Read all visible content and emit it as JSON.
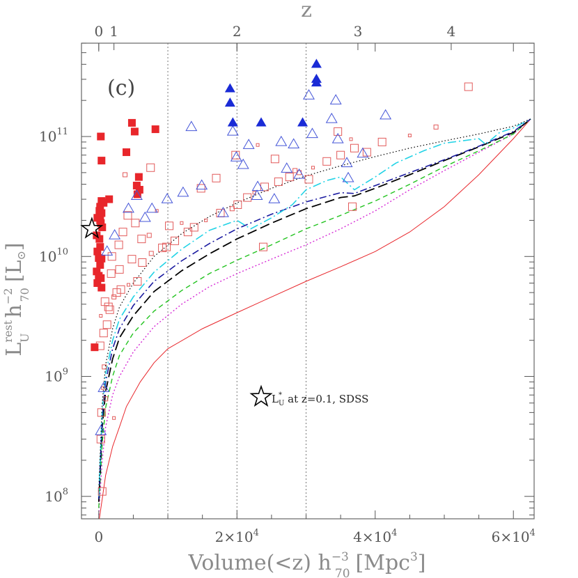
{
  "chart_data": {
    "type": "scatter",
    "panel_label": "(c)",
    "xlabel": "Volume(<z) h",
    "xlabel_sub": "70",
    "xlabel_sup": "−3",
    "xlabel_unit": "[Mpc",
    "xlabel_unit_sup": "3",
    "xlabel_close": "]",
    "ylabel_main": "L",
    "ylabel_sup": "rest",
    "ylabel_sub": "U",
    "ylabel_h": "h",
    "ylabel_h_sup": "−2",
    "ylabel_h_sub": "70",
    "ylabel_unit": "[L",
    "ylabel_unit_sym": "⊙",
    "ylabel_close": "]",
    "top_axis_label": "z",
    "top_ticks": [
      {
        "label": "0",
        "volume": 0
      },
      {
        "label": "1",
        "volume": 2200
      },
      {
        "label": "2",
        "volume": 20000
      },
      {
        "label": "3",
        "volume": 37500
      },
      {
        "label": "4",
        "volume": 51000
      }
    ],
    "x_ticks": [
      {
        "value": 0,
        "label": "0"
      },
      {
        "value": 20000,
        "label": "2×10",
        "sup": "4"
      },
      {
        "value": 40000,
        "label": "4×10",
        "sup": "4"
      },
      {
        "value": 60000,
        "label": "6×10",
        "sup": "4"
      }
    ],
    "y_ticks": [
      {
        "value": 100000000,
        "label": "10",
        "sup": "8"
      },
      {
        "value": 1000000000,
        "label": "10",
        "sup": "9"
      },
      {
        "value": 10000000000,
        "label": "10",
        "sup": "10"
      },
      {
        "value": 100000000000,
        "label": "10",
        "sup": "11"
      }
    ],
    "xlim": [
      -2500,
      63000
    ],
    "ylim": [
      65000000,
      600000000000
    ],
    "y_scale": "log",
    "dotted_verticals": [
      10000,
      20000,
      30000
    ],
    "legend": {
      "symbol": "star",
      "text_main": "L",
      "text_sup": "*",
      "text_sub": "U",
      "text_rest": " at z=0.1, SDSS"
    },
    "reference_star": {
      "x": -1000,
      "y": 17000000000
    },
    "colors": {
      "red": "#e8262b",
      "red_open": "#e25a5a",
      "blue": "#1a2bd6",
      "blue_open": "#4455d8",
      "cyan": "#22d3e6",
      "green": "#22c31f",
      "magenta": "#d62ad6",
      "black": "#000000",
      "navy": "#1a1aa0"
    },
    "series": [
      {
        "style": "red-solid",
        "points": [
          [
            0,
            60000000
          ],
          [
            1000,
            150000000
          ],
          [
            2000,
            260000000
          ],
          [
            3000,
            380000000
          ],
          [
            4000,
            560000000
          ],
          [
            6000,
            900000000
          ],
          [
            8000,
            1300000000
          ],
          [
            10000,
            1700000000
          ],
          [
            15000,
            2500000000
          ],
          [
            20000,
            3400000000
          ],
          [
            25000,
            4600000000
          ],
          [
            30000,
            6200000000
          ],
          [
            35000,
            8200000000
          ],
          [
            40000,
            11000000000
          ],
          [
            45000,
            16000000000
          ],
          [
            50000,
            26000000000
          ],
          [
            55000,
            48000000000
          ],
          [
            60000,
            96000000000
          ],
          [
            62500,
            140000000000
          ]
        ]
      },
      {
        "style": "magenta-dotted",
        "points": [
          [
            0,
            70000000
          ],
          [
            500,
            200000000
          ],
          [
            1000,
            380000000
          ],
          [
            2000,
            700000000
          ],
          [
            3000,
            1000000000
          ],
          [
            5000,
            1600000000
          ],
          [
            8000,
            2600000000
          ],
          [
            12000,
            4000000000
          ],
          [
            16000,
            5600000000
          ],
          [
            20000,
            7200000000
          ],
          [
            25000,
            9500000000
          ],
          [
            30000,
            12500000000
          ],
          [
            35000,
            17000000000
          ],
          [
            40000,
            24000000000
          ],
          [
            45000,
            36000000000
          ],
          [
            50000,
            52000000000
          ],
          [
            55000,
            74000000000
          ],
          [
            60000,
            105000000000
          ],
          [
            62500,
            140000000000
          ]
        ]
      },
      {
        "style": "green-dashed",
        "points": [
          [
            0,
            80000000
          ],
          [
            500,
            280000000
          ],
          [
            1000,
            550000000
          ],
          [
            2000,
            1000000000
          ],
          [
            3000,
            1500000000
          ],
          [
            5000,
            2300000000
          ],
          [
            8000,
            3500000000
          ],
          [
            12000,
            5200000000
          ],
          [
            16000,
            7200000000
          ],
          [
            20000,
            9300000000
          ],
          [
            25000,
            12500000000
          ],
          [
            30000,
            17000000000
          ],
          [
            35000,
            22000000000
          ],
          [
            40000,
            29000000000
          ],
          [
            45000,
            40000000000
          ],
          [
            50000,
            56000000000
          ],
          [
            55000,
            76000000000
          ],
          [
            60000,
            105000000000
          ],
          [
            62500,
            140000000000
          ]
        ]
      },
      {
        "style": "black-longdash",
        "points": [
          [
            0,
            90000000
          ],
          [
            500,
            380000000
          ],
          [
            1000,
            750000000
          ],
          [
            2000,
            1400000000
          ],
          [
            3000,
            2100000000
          ],
          [
            5000,
            3200000000
          ],
          [
            8000,
            5100000000
          ],
          [
            12000,
            7600000000
          ],
          [
            16000,
            10500000000
          ],
          [
            20000,
            14000000000
          ],
          [
            25000,
            19000000000
          ],
          [
            30000,
            25000000000
          ],
          [
            35000,
            31000000000
          ],
          [
            37000,
            32000000000
          ],
          [
            40000,
            37000000000
          ],
          [
            45000,
            48000000000
          ],
          [
            50000,
            63000000000
          ],
          [
            55000,
            82000000000
          ],
          [
            60000,
            108000000000
          ],
          [
            62500,
            140000000000
          ]
        ]
      },
      {
        "style": "navy-dashdot",
        "points": [
          [
            0,
            95000000
          ],
          [
            500,
            450000000
          ],
          [
            1000,
            900000000
          ],
          [
            2000,
            1700000000
          ],
          [
            3000,
            2500000000
          ],
          [
            5000,
            3900000000
          ],
          [
            8000,
            6200000000
          ],
          [
            12000,
            9200000000
          ],
          [
            16000,
            12800000000
          ],
          [
            20000,
            17000000000
          ],
          [
            25000,
            22500000000
          ],
          [
            30000,
            28500000000
          ],
          [
            35000,
            34000000000
          ],
          [
            37000,
            33500000000
          ],
          [
            40000,
            39000000000
          ],
          [
            45000,
            50000000000
          ],
          [
            50000,
            64000000000
          ],
          [
            55000,
            83000000000
          ],
          [
            60000,
            110000000000
          ],
          [
            62500,
            140000000000
          ]
        ]
      },
      {
        "style": "cyan-dashdot",
        "points": [
          [
            0,
            100000000
          ],
          [
            500,
            520000000
          ],
          [
            1000,
            1050000000
          ],
          [
            2000,
            2000000000
          ],
          [
            3000,
            3000000000
          ],
          [
            5000,
            4600000000
          ],
          [
            8000,
            7400000000
          ],
          [
            12000,
            11500000000
          ],
          [
            16000,
            16500000000
          ],
          [
            20000,
            20000000000
          ],
          [
            22000,
            17000000000
          ],
          [
            25000,
            21000000000
          ],
          [
            28000,
            27000000000
          ],
          [
            30000,
            36000000000
          ],
          [
            33000,
            43000000000
          ],
          [
            35000,
            46000000000
          ],
          [
            37000,
            36000000000
          ],
          [
            40000,
            46000000000
          ],
          [
            43000,
            60000000000
          ],
          [
            47000,
            76000000000
          ],
          [
            50000,
            88000000000
          ],
          [
            55000,
            96000000000
          ],
          [
            56000,
            86000000000
          ],
          [
            58000,
            108000000000
          ],
          [
            60000,
            118000000000
          ],
          [
            62500,
            140000000000
          ]
        ]
      },
      {
        "style": "black-dotted",
        "points": [
          [
            0,
            110000000
          ],
          [
            500,
            600000000
          ],
          [
            1000,
            1250000000
          ],
          [
            2000,
            2500000000
          ],
          [
            3000,
            3800000000
          ],
          [
            5000,
            6000000000
          ],
          [
            8000,
            10000000000
          ],
          [
            12000,
            15500000000
          ],
          [
            16000,
            21500000000
          ],
          [
            20000,
            28000000000
          ],
          [
            25000,
            37000000000
          ],
          [
            30000,
            47000000000
          ],
          [
            35000,
            57000000000
          ],
          [
            40000,
            68000000000
          ],
          [
            45000,
            80000000000
          ],
          [
            50000,
            92000000000
          ],
          [
            55000,
            105000000000
          ],
          [
            60000,
            122000000000
          ],
          [
            62500,
            140000000000
          ]
        ]
      }
    ],
    "red_filled_squares": [
      [
        300,
        100000000000
      ],
      [
        400,
        63000000000
      ],
      [
        4800,
        130000000000
      ],
      [
        5200,
        110000000000
      ],
      [
        8200,
        115000000000
      ],
      [
        4000,
        74000000000
      ],
      [
        5800,
        46000000000
      ],
      [
        5500,
        39000000000
      ],
      [
        5900,
        36000000000
      ],
      [
        5600,
        33000000000
      ],
      [
        1500,
        30000000000
      ],
      [
        400,
        29000000000
      ],
      [
        700,
        28000000000
      ],
      [
        200,
        26000000000
      ],
      [
        100,
        24000000000
      ],
      [
        400,
        23000000000
      ],
      [
        -200,
        21000000000
      ],
      [
        200,
        20000000000
      ],
      [
        300,
        19000000000
      ],
      [
        500,
        17500000000
      ],
      [
        -300,
        15000000000
      ],
      [
        100,
        14000000000
      ],
      [
        200,
        12000000000
      ],
      [
        -200,
        11000000000
      ],
      [
        0,
        9700000000
      ],
      [
        400,
        9600000000
      ],
      [
        200,
        8500000000
      ],
      [
        -300,
        7500000000
      ],
      [
        0,
        6900000000
      ],
      [
        300,
        6600000000
      ],
      [
        -200,
        6000000000
      ],
      [
        400,
        5500000000
      ],
      [
        -600,
        1750000000
      ]
    ],
    "red_open_squares": [
      [
        500,
        110000000
      ],
      [
        300,
        300000000
      ],
      [
        600,
        800000000
      ],
      [
        800,
        1200000000
      ],
      [
        200,
        1800000000
      ],
      [
        700,
        2300000000
      ],
      [
        1200,
        2700000000
      ],
      [
        300,
        3200000000
      ],
      [
        1600,
        3600000000
      ],
      [
        900,
        4200000000
      ],
      [
        2200,
        4600000000
      ],
      [
        3200,
        5300000000
      ],
      [
        4300,
        5800000000
      ],
      [
        5600,
        6200000000
      ],
      [
        1800,
        7200000000
      ],
      [
        3000,
        7800000000
      ],
      [
        6300,
        8900000000
      ],
      [
        7600,
        10600000000
      ],
      [
        9200,
        11800000000
      ],
      [
        11000,
        13500000000
      ],
      [
        12900,
        16000000000
      ],
      [
        13800,
        17500000000
      ],
      [
        15500,
        20000000000
      ],
      [
        17600,
        23000000000
      ],
      [
        19300,
        25000000000
      ],
      [
        20100,
        27000000000
      ],
      [
        21500,
        31000000000
      ],
      [
        22500,
        34000000000
      ],
      [
        24000,
        38000000000
      ],
      [
        26000,
        42000000000
      ],
      [
        27600,
        46000000000
      ],
      [
        29000,
        50000000000
      ],
      [
        31000,
        55000000000
      ],
      [
        33000,
        62000000000
      ],
      [
        35000,
        70000000000
      ],
      [
        37000,
        80000000000
      ],
      [
        41000,
        90000000000
      ],
      [
        45000,
        102000000000
      ],
      [
        48800,
        120000000000
      ],
      [
        53500,
        260000000000
      ],
      [
        4200,
        22000000000
      ],
      [
        5300,
        19000000000
      ],
      [
        8400,
        24000000000
      ],
      [
        10200,
        18000000000
      ],
      [
        3500,
        16000000000
      ],
      [
        7300,
        15000000000
      ],
      [
        9800,
        12000000000
      ],
      [
        12000,
        19000000000
      ],
      [
        2900,
        12500000000
      ],
      [
        1900,
        10000000000
      ],
      [
        4800,
        9500000000
      ],
      [
        6200,
        14000000000
      ],
      [
        3800,
        48000000000
      ],
      [
        7500,
        55000000000
      ],
      [
        14800,
        37000000000
      ],
      [
        17000,
        45000000000
      ],
      [
        19800,
        70000000000
      ],
      [
        23000,
        85000000000
      ],
      [
        25500,
        65000000000
      ],
      [
        28400,
        52000000000
      ],
      [
        30400,
        44000000000
      ],
      [
        34600,
        110000000000
      ],
      [
        36500,
        95000000000
      ],
      [
        38800,
        74000000000
      ],
      [
        23800,
        12000000000
      ],
      [
        36700,
        26000000000
      ],
      [
        1000,
        650000000
      ],
      [
        2200,
        450000000
      ],
      [
        400,
        500000000
      ],
      [
        1400,
        3800000000
      ],
      [
        2600,
        5000000000
      ]
    ],
    "blue_filled_triangles": [
      [
        19000,
        250000000000
      ],
      [
        19000,
        190000000000
      ],
      [
        19400,
        130000000000
      ],
      [
        23500,
        130000000000
      ],
      [
        31500,
        400000000000
      ],
      [
        31500,
        300000000000
      ],
      [
        31500,
        280000000000
      ],
      [
        29500,
        130000000000
      ]
    ],
    "blue_open_triangles": [
      [
        13400,
        120000000000
      ],
      [
        19900,
        67000000000
      ],
      [
        21700,
        85000000000
      ],
      [
        26400,
        90000000000
      ],
      [
        28200,
        86000000000
      ],
      [
        29000,
        48000000000
      ],
      [
        30900,
        105000000000
      ],
      [
        33700,
        140000000000
      ],
      [
        34600,
        95000000000
      ],
      [
        35900,
        60000000000
      ],
      [
        38200,
        72000000000
      ],
      [
        36100,
        45000000000
      ],
      [
        41500,
        150000000000
      ],
      [
        27200,
        54000000000
      ],
      [
        23000,
        38000000000
      ],
      [
        18000,
        23000000000
      ],
      [
        14900,
        39000000000
      ],
      [
        12200,
        34000000000
      ],
      [
        9900,
        30000000000
      ],
      [
        7700,
        25000000000
      ],
      [
        6700,
        21000000000
      ],
      [
        5500,
        32000000000
      ],
      [
        4300,
        25000000000
      ],
      [
        2300,
        15000000000
      ],
      [
        1200,
        11000000000
      ],
      [
        700,
        800000000
      ],
      [
        300,
        350000000
      ],
      [
        19400,
        110000000000
      ],
      [
        20900,
        58000000000
      ],
      [
        22900,
        32000000000
      ],
      [
        25400,
        30000000000
      ],
      [
        30400,
        220000000000
      ],
      [
        34300,
        200000000000
      ]
    ]
  }
}
